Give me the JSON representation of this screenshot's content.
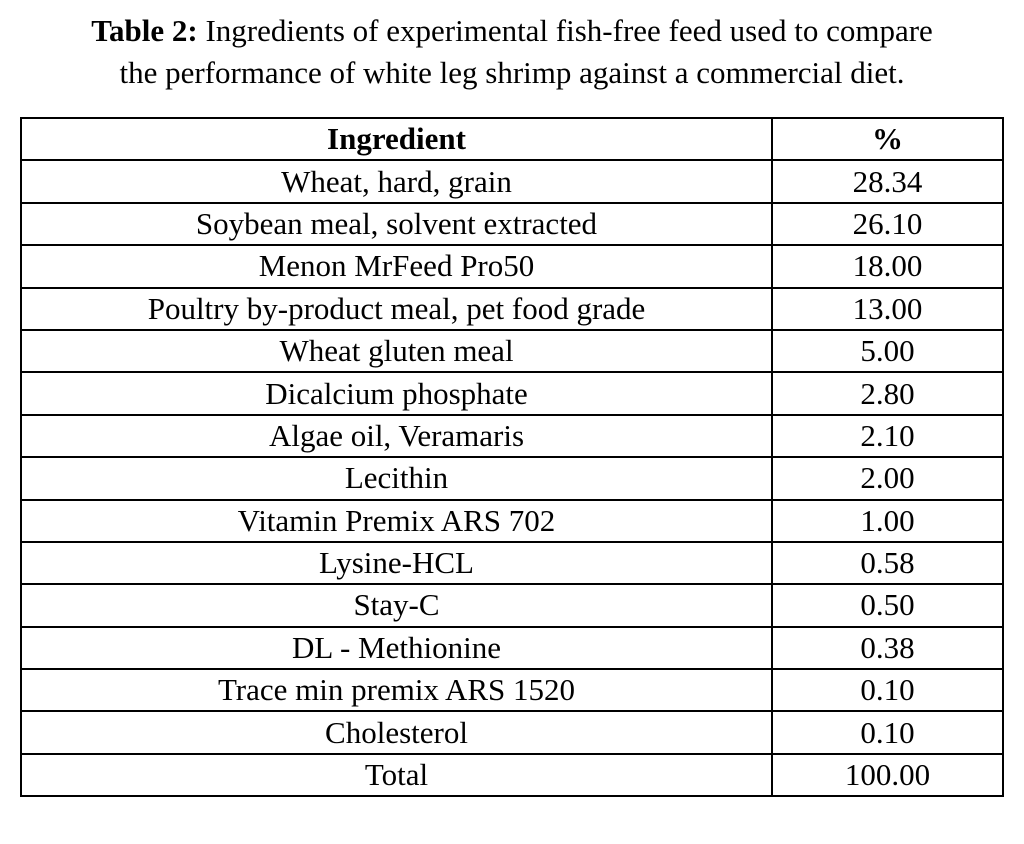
{
  "caption": {
    "label": "Table 2:",
    "line1_text": "Ingredients of experimental fish-free feed used to compare",
    "line2_text": "the performance of white leg shrimp against a commercial diet."
  },
  "table": {
    "headers": [
      "Ingredient",
      "%"
    ],
    "rows": [
      {
        "ingredient": "Wheat, hard, grain",
        "percent": "28.34"
      },
      {
        "ingredient": "Soybean meal, solvent extracted",
        "percent": "26.10"
      },
      {
        "ingredient": "Menon MrFeed Pro50",
        "percent": "18.00"
      },
      {
        "ingredient": "Poultry by-product meal, pet food grade",
        "percent": "13.00"
      },
      {
        "ingredient": "Wheat gluten meal",
        "percent": "5.00"
      },
      {
        "ingredient": "Dicalcium phosphate",
        "percent": "2.80"
      },
      {
        "ingredient": "Algae oil, Veramaris",
        "percent": "2.10"
      },
      {
        "ingredient": "Lecithin",
        "percent": "2.00"
      },
      {
        "ingredient": "Vitamin Premix ARS 702",
        "percent": "1.00"
      },
      {
        "ingredient": "Lysine-HCL",
        "percent": "0.58"
      },
      {
        "ingredient": "Stay-C",
        "percent": "0.50"
      },
      {
        "ingredient": "DL - Methionine",
        "percent": "0.38"
      },
      {
        "ingredient": "Trace min premix ARS 1520",
        "percent": "0.10"
      },
      {
        "ingredient": "Cholesterol",
        "percent": "0.10"
      },
      {
        "ingredient": "Total",
        "percent": "100.00"
      }
    ]
  }
}
